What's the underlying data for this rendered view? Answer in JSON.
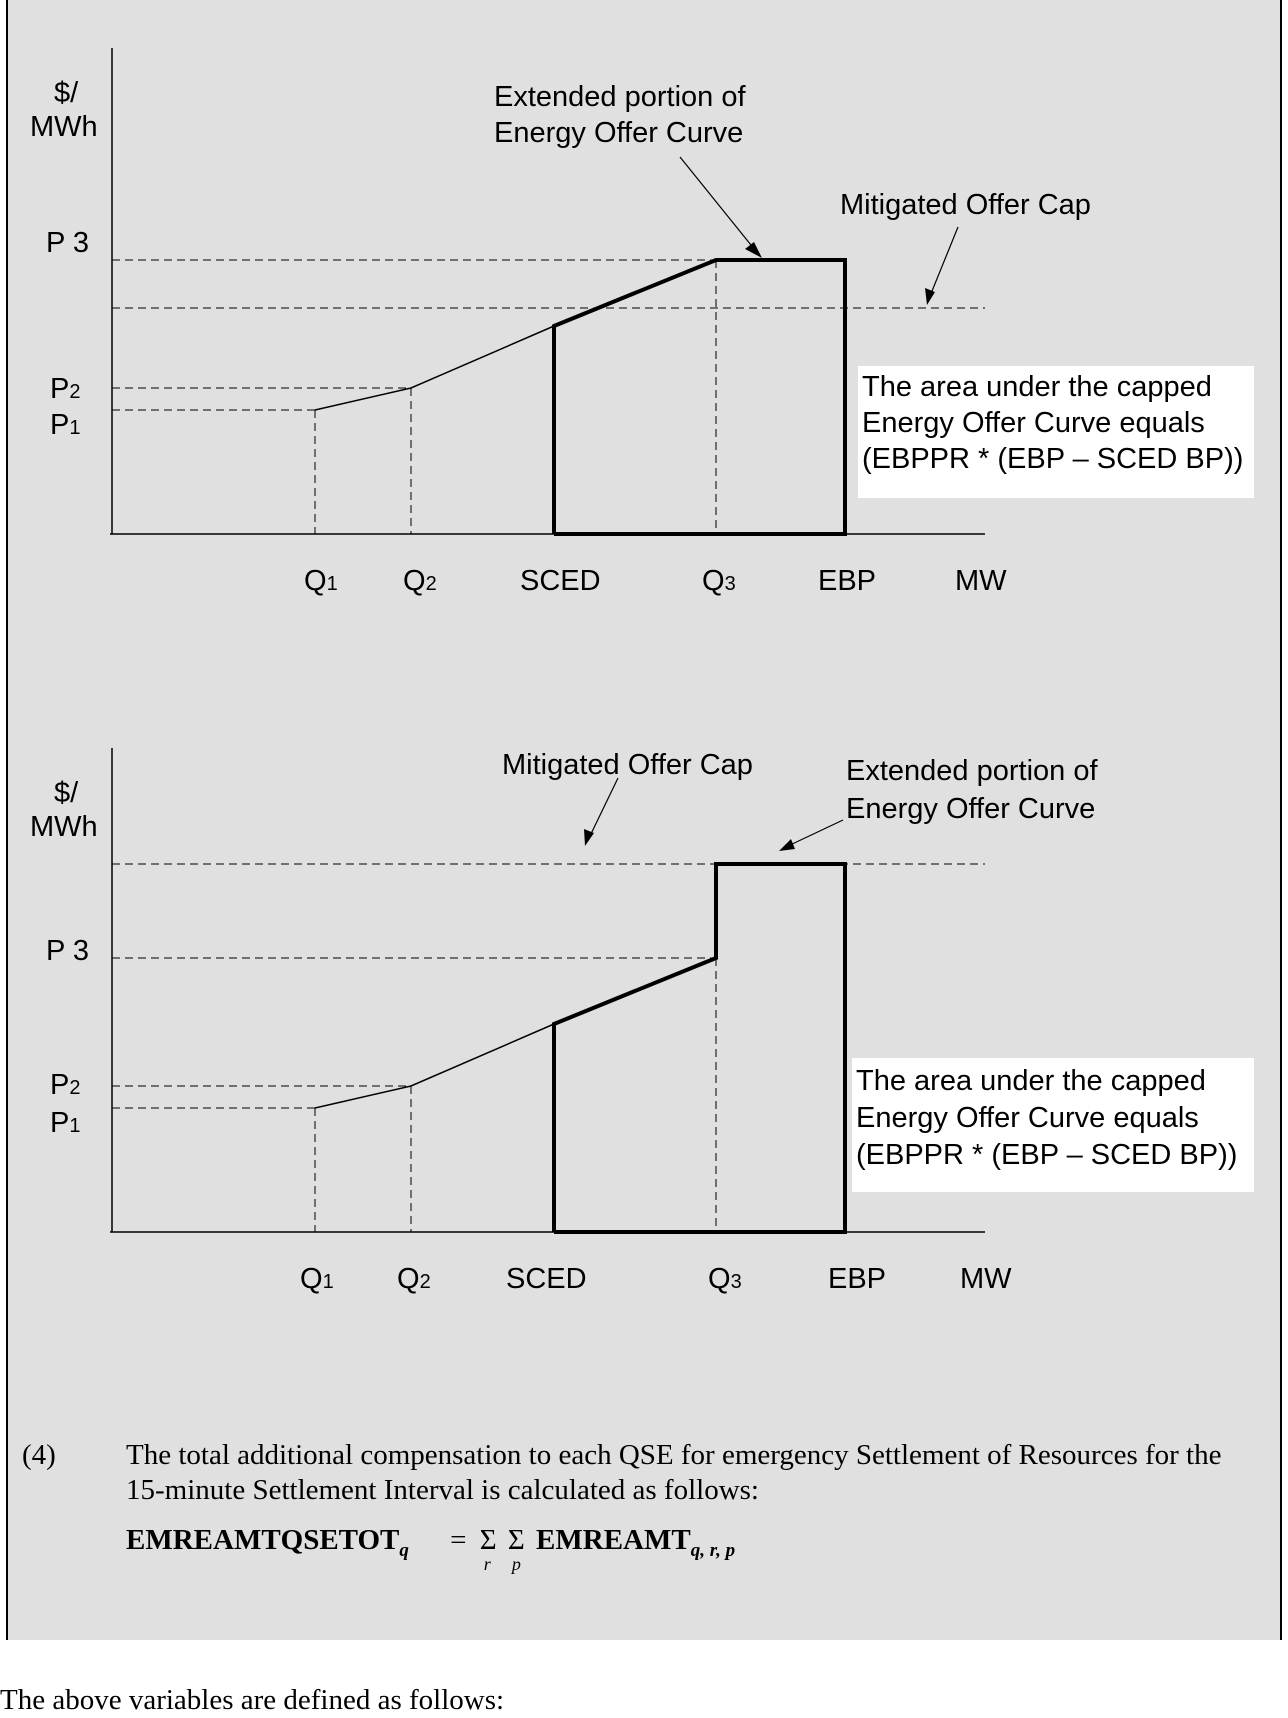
{
  "diagram1": {
    "y_axis_label_line1": "$/",
    "y_axis_label_line2": "MWh",
    "price_labels": {
      "p3": "P 3",
      "p2": "P",
      "p2_sub": "2",
      "p1": "P",
      "p1_sub": "1"
    },
    "quantity_labels": {
      "q1": "Q",
      "q1_sub": "1",
      "q2": "Q",
      "q2_sub": "2",
      "sced": "SCED",
      "q3": "Q",
      "q3_sub": "3",
      "ebp": "EBP",
      "mw": "MW"
    },
    "callout_extended_line1": "Extended portion of",
    "callout_extended_line2": "Energy Offer Curve",
    "callout_mitigated": "Mitigated Offer Cap",
    "area_note_line1": "The area under the capped",
    "area_note_line2": "Energy Offer Curve equals",
    "area_note_line3": "(EBPPR * (EBP – SCED BP))"
  },
  "diagram2": {
    "y_axis_label_line1": "$/",
    "y_axis_label_line2": "MWh",
    "price_labels": {
      "p3": "P 3",
      "p2": "P",
      "p2_sub": "2",
      "p1": "P",
      "p1_sub": "1"
    },
    "quantity_labels": {
      "q1": "Q",
      "q1_sub": "1",
      "q2": "Q",
      "q2_sub": "2",
      "sced": "SCED",
      "q3": "Q",
      "q3_sub": "3",
      "ebp": "EBP",
      "mw": "MW"
    },
    "callout_mitigated": "Mitigated Offer Cap",
    "callout_extended_line1": "Extended portion of",
    "callout_extended_line2": "Energy Offer Curve",
    "area_note_line1": "The area under the capped",
    "area_note_line2": "Energy Offer Curve equals",
    "area_note_line3": "(EBPPR * (EBP – SCED BP))"
  },
  "paragraph": {
    "number": "(4)",
    "text": "The total additional compensation to each QSE for emergency Settlement of Resources for the 15-minute Settlement Interval is calculated as follows:"
  },
  "formula": {
    "lhs": "EMREAMTQSETOT",
    "lhs_sub": "q",
    "equals": "=",
    "sigma": "Σ",
    "sigma1_index": "r",
    "sigma2_index": "p",
    "rhs": "EMREAMT",
    "rhs_sub": "q, r, p"
  },
  "footer_text": "The above variables are defined as follows:"
}
